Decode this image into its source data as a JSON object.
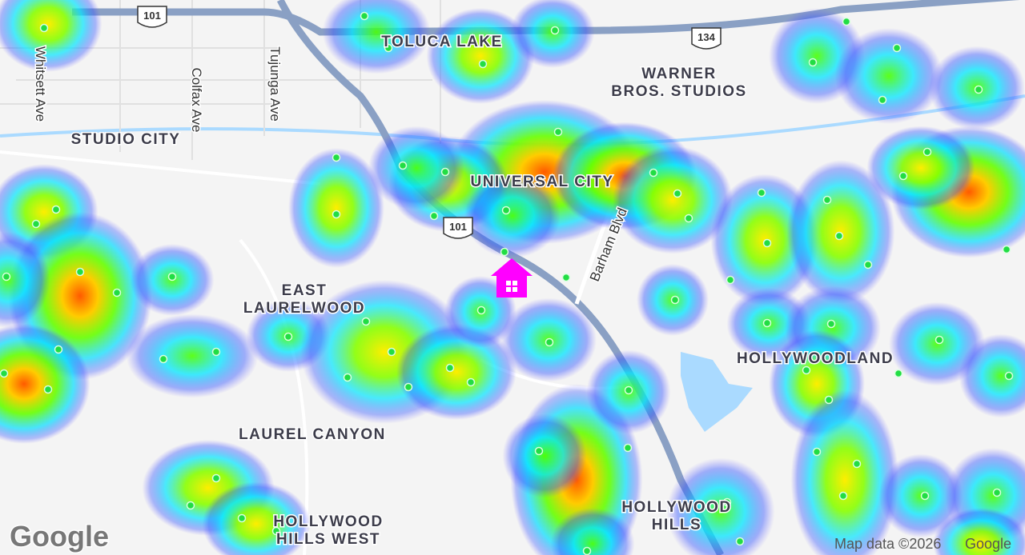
{
  "map": {
    "places": [
      {
        "lines": [
          "TOLUCA LAKE"
        ]
      },
      {
        "lines": [
          "WARNER",
          "BROS. STUDIOS"
        ]
      },
      {
        "lines": [
          "STUDIO CITY"
        ]
      },
      {
        "lines": [
          "UNIVERSAL CITY"
        ]
      },
      {
        "lines": [
          "EAST",
          "LAURELWOOD"
        ]
      },
      {
        "lines": [
          "HOLLYWOODLAND"
        ]
      },
      {
        "lines": [
          "LAUREL CANYON"
        ]
      },
      {
        "lines": [
          "HOLLYWOOD",
          "HILLS WEST"
        ]
      },
      {
        "lines": [
          "HOLLYWOOD",
          "HILLS"
        ]
      }
    ],
    "streets": [
      "Whitsett Ave",
      "Colfax Ave",
      "Tujunga Ave",
      "Barham Blvd"
    ],
    "shields": [
      "101",
      "134",
      "101"
    ],
    "logo": "Google",
    "attribution": {
      "text": "Map data ©2026",
      "brand": "Google"
    }
  }
}
